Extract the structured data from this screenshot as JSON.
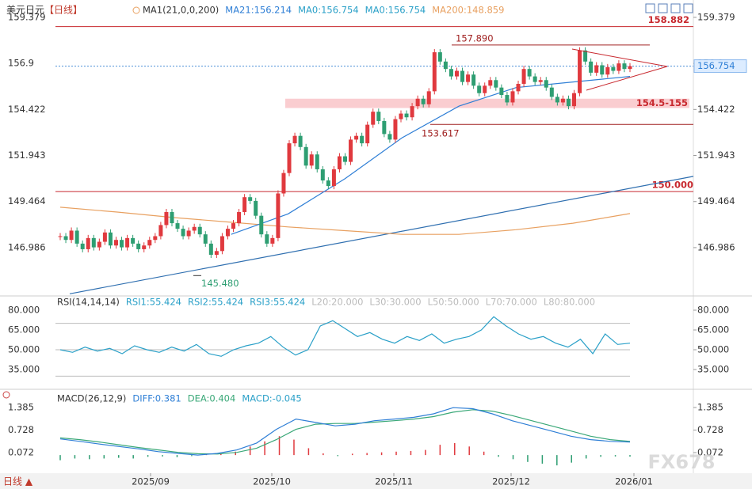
{
  "chart_data": {
    "type": "candlestick",
    "title": "美元日元",
    "period": "【日线】",
    "legend": [
      "MA1(21,0,0,200)",
      "MA21:156.214",
      "MA0:156.754",
      "MA0:156.754",
      "MA200:148.859"
    ],
    "ylim": [
      144.47,
      160.1
    ],
    "yticks": [
      159.379,
      156.9,
      154.422,
      151.943,
      149.464,
      146.986
    ],
    "x_labels": [
      "2025/09",
      "2025/10",
      "2025/11",
      "2025/12",
      "2026/01"
    ],
    "up_color": "#e0393e",
    "down_color": "#2e9e72",
    "closes": [
      147.6,
      147.4,
      147.9,
      147.2,
      146.9,
      147.5,
      147.0,
      147.3,
      147.8,
      147.1,
      147.4,
      147.0,
      147.5,
      147.2,
      146.9,
      147.1,
      147.4,
      147.6,
      148.2,
      148.9,
      148.3,
      148.0,
      147.6,
      147.9,
      148.1,
      147.7,
      147.2,
      146.6,
      146.8,
      147.6,
      148.0,
      148.3,
      148.9,
      149.7,
      149.5,
      148.7,
      147.7,
      147.2,
      147.5,
      149.9,
      151.0,
      152.6,
      153.0,
      152.4,
      151.4,
      152.0,
      151.2,
      150.6,
      150.3,
      151.2,
      151.9,
      151.6,
      152.8,
      153.0,
      152.6,
      153.6,
      154.3,
      153.8,
      153.1,
      152.8,
      153.9,
      154.2,
      154.0,
      154.6,
      155.0,
      154.7,
      155.4,
      157.5,
      157.0,
      156.6,
      156.2,
      156.5,
      155.9,
      156.3,
      155.7,
      155.3,
      155.7,
      156.0,
      155.6,
      155.2,
      154.8,
      155.4,
      155.8,
      156.6,
      156.2,
      155.9,
      156.0,
      155.6,
      155.1,
      154.8,
      155.0,
      154.6,
      155.3,
      157.6,
      157.0,
      156.4,
      156.8,
      156.3,
      156.7,
      156.5,
      156.9,
      156.6,
      156.75
    ],
    "ma21": {
      "color": "#2f7fd6",
      "values": [
        null,
        null,
        null,
        147.7,
        148.8,
        150.7,
        152.9,
        154.6,
        155.6,
        155.9,
        156.2
      ]
    },
    "ma200": {
      "color": "#e8a060",
      "values": [
        149.16,
        148.9,
        148.6,
        148.35,
        148.1,
        147.9,
        147.7,
        147.7,
        147.95,
        148.3,
        148.82
      ]
    },
    "levels": [
      {
        "value": 158.882,
        "label": "158.882",
        "color": "#c8282e"
      },
      {
        "value": 157.89,
        "label": "157.890",
        "color": "#a02020"
      },
      {
        "value": 153.617,
        "label": "153.617",
        "color": "#a02020"
      },
      {
        "value": 150.0,
        "label": "150.000",
        "color": "#c8282e"
      }
    ],
    "low_point": {
      "value": 145.48,
      "label": "145.480"
    },
    "zone": {
      "low": 154.5,
      "high": 155,
      "label": "154.5-155",
      "color": "#f9c4c8"
    },
    "trendline": [
      144.5,
      150.82
    ],
    "last_price": {
      "value": 156.754,
      "label": "156.754"
    },
    "rsi": {
      "legend": [
        "RSI(14,14,14)",
        "RSI1:55.424",
        "RSI2:55.424",
        "RSI3:55.424",
        "L20:20.000",
        "L30:30.000",
        "L50:50.000",
        "L70:70.000",
        "L80:80.000"
      ],
      "ylim": [
        20,
        88.4
      ],
      "yticks": [
        {
          "value": 80,
          "label": "80.000"
        },
        {
          "value": 65,
          "label": "65.000"
        },
        {
          "value": 50,
          "label": "50.000"
        },
        {
          "value": 35,
          "label": "35.000"
        }
      ],
      "levels": [
        70,
        50,
        30
      ],
      "color": "#2aa0c8",
      "values": [
        50,
        48,
        52,
        49,
        51,
        47,
        53,
        50,
        48,
        52,
        49,
        54,
        47,
        45,
        50,
        53,
        55,
        60,
        52,
        46,
        50,
        68,
        72,
        66,
        60,
        63,
        58,
        55,
        60,
        57,
        62,
        55,
        58,
        60,
        65,
        75,
        68,
        62,
        58,
        60,
        55,
        52,
        58,
        47,
        62,
        54,
        55
      ]
    },
    "macd": {
      "legend": [
        "MACD(26,12,9)",
        "DIFF:0.381",
        "DEA:0.404",
        "MACD:-0.045"
      ],
      "ylim": [
        -0.527,
        1.846
      ],
      "yticks": [
        1.385,
        0.728,
        0.072
      ],
      "diff": {
        "color": "#2f7fd6",
        "values": [
          0.47,
          0.4,
          0.32,
          0.25,
          0.18,
          0.1,
          0.05,
          0.0,
          0.05,
          0.15,
          0.35,
          0.75,
          1.05,
          0.95,
          0.85,
          0.9,
          1.0,
          1.05,
          1.1,
          1.2,
          1.38,
          1.35,
          1.2,
          1.0,
          0.85,
          0.7,
          0.55,
          0.45,
          0.4,
          0.38
        ]
      },
      "dea": {
        "color": "#3aa878",
        "values": [
          0.5,
          0.45,
          0.38,
          0.3,
          0.22,
          0.15,
          0.08,
          0.04,
          0.03,
          0.08,
          0.2,
          0.45,
          0.75,
          0.9,
          0.92,
          0.92,
          0.96,
          1.0,
          1.05,
          1.12,
          1.25,
          1.32,
          1.28,
          1.15,
          1.0,
          0.85,
          0.7,
          0.55,
          0.45,
          0.4
        ]
      },
      "hist": [
        -0.15,
        -0.1,
        -0.12,
        -0.1,
        -0.08,
        -0.1,
        -0.05,
        -0.04,
        -0.06,
        -0.03,
        0.02,
        0.05,
        0.1,
        0.25,
        0.4,
        0.55,
        0.45,
        0.2,
        0.05,
        -0.03,
        0.04,
        0.06,
        0.08,
        0.1,
        0.12,
        0.15,
        0.3,
        0.35,
        0.25,
        0.1,
        -0.05,
        -0.12,
        -0.2,
        -0.25,
        -0.3,
        -0.22,
        -0.1,
        -0.05,
        -0.04,
        -0.045
      ]
    },
    "footer": "日线 ▲",
    "watermark": "FX678"
  }
}
